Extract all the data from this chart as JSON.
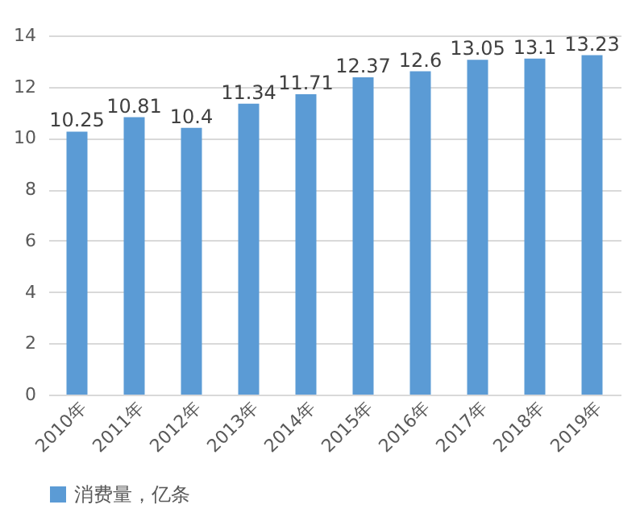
{
  "chart_data": {
    "type": "bar",
    "categories": [
      "2010年",
      "2011年",
      "2012年",
      "2013年",
      "2014年",
      "2015年",
      "2016年",
      "2017年",
      "2018年",
      "2019年"
    ],
    "series": [
      {
        "name": "消费量，亿条",
        "color": "#5b9bd5",
        "values": [
          10.25,
          10.81,
          10.4,
          11.34,
          11.71,
          12.37,
          12.6,
          13.05,
          13.1,
          13.23
        ]
      }
    ],
    "ylim": [
      0,
      14
    ],
    "yticks": [
      0,
      2,
      4,
      6,
      8,
      10,
      12,
      14
    ],
    "grid": "y",
    "data_labels": true,
    "legend": "bottom"
  }
}
